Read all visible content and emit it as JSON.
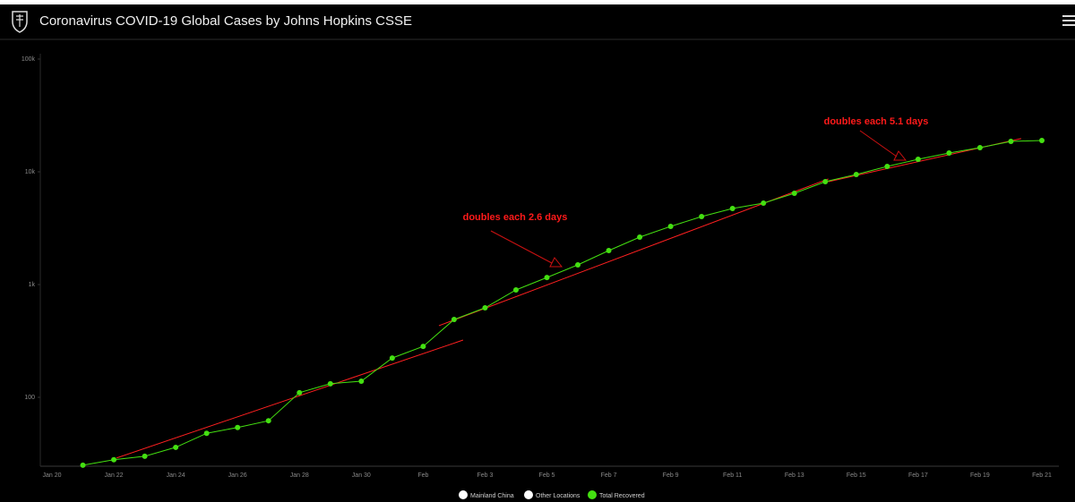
{
  "header": {
    "title": "Coronavirus COVID-19 Global Cases by Johns Hopkins CSSE"
  },
  "chart_data": {
    "type": "line",
    "log_scale": true,
    "grid": false,
    "categories": [
      "Jan 20",
      null,
      "Jan 22",
      null,
      "Jan 24",
      null,
      "Jan 26",
      null,
      "Jan 28",
      null,
      "Jan 30",
      null,
      "Feb",
      null,
      "Feb 3",
      null,
      "Feb 5",
      null,
      "Feb 7",
      null,
      "Feb 9",
      null,
      "Feb 11",
      null,
      "Feb 13",
      null,
      "Feb 15",
      null,
      "Feb 17",
      null,
      "Feb 19",
      null,
      "Feb 21"
    ],
    "series": [
      {
        "name": "Total Recovered",
        "color": "#44e011",
        "values": [
          null,
          25,
          28,
          30,
          36,
          48,
          54,
          62,
          110,
          132,
          139,
          223,
          283,
          490,
          622,
          896,
          1156,
          1495,
          2005,
          2636,
          3281,
          4010,
          4730,
          5275,
          6450,
          8180,
          9470,
          11160,
          12920,
          14680,
          16380,
          18630,
          18960
        ]
      }
    ],
    "inactive_series": [
      {
        "name": "Mainland China",
        "color": "#ffffff"
      },
      {
        "name": "Other Locations",
        "color": "#ffffff"
      }
    ],
    "ylim": [
      24.5,
      100000
    ],
    "yticks": [
      {
        "value": 100,
        "label": "100"
      },
      {
        "value": 1000,
        "label": "1k"
      },
      {
        "value": 10000,
        "label": "10k"
      },
      {
        "value": 100000,
        "label": "100k"
      }
    ],
    "trendlines": [
      {
        "color": "#ff2020",
        "x": [
          2.09,
          13.29
        ],
        "y": [
          29,
          322
        ]
      },
      {
        "color": "#ff2020",
        "x": [
          12.51,
          25.1
        ],
        "y": [
          432,
          8650
        ]
      },
      {
        "color": "#ff2020",
        "x": [
          25.1,
          31.33
        ],
        "y": [
          8180,
          19700
        ]
      }
    ],
    "annotations": [
      {
        "text": "doubles each 2.6 days",
        "color": "#ff1a1a"
      },
      {
        "text": "doubles each 5.1 days",
        "color": "#ff1a1a"
      }
    ]
  }
}
